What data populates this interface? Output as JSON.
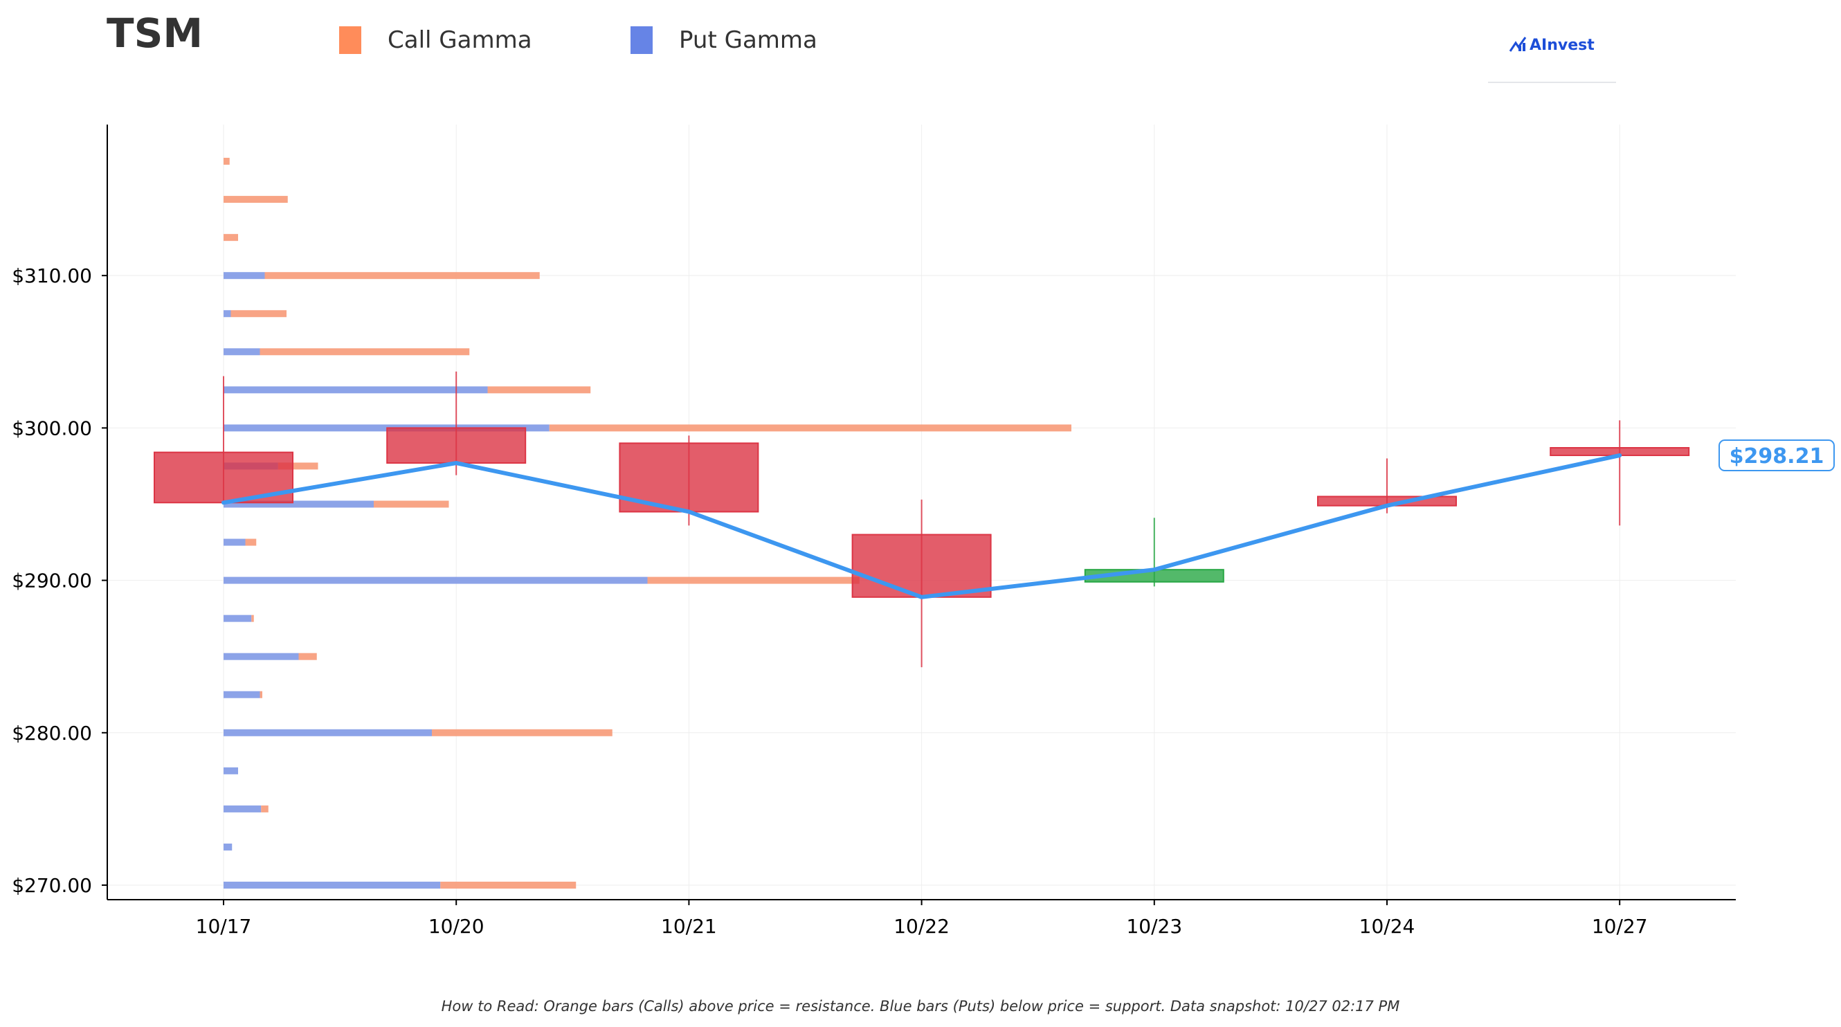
{
  "header": {
    "ticker": "TSM",
    "logo_text": "AInvest"
  },
  "legend": [
    {
      "label": "Call Gamma",
      "color": "#ff8c5a"
    },
    {
      "label": "Put Gamma",
      "color": "#6684e6"
    }
  ],
  "footnote": "How to Read: Orange bars (Calls) above price = resistance. Blue bars (Puts) below price = support. Data snapshot: 10/27 02:17 PM",
  "colors": {
    "call": "#f79a78",
    "put": "#8099e6",
    "bearish": "#dc3545",
    "bullish": "#28a745",
    "price_line": "#3d97f0"
  },
  "chart_data": {
    "type": "bar",
    "categories": [
      "10/17",
      "10/20",
      "10/21",
      "10/22",
      "10/23",
      "10/24",
      "10/27"
    ],
    "ylim": [
      269.5,
      319
    ],
    "yticks": [
      270,
      280,
      290,
      300,
      310
    ],
    "ytick_labels": [
      "$270.00",
      "$280.00",
      "$290.00",
      "$300.00",
      "$310.00"
    ],
    "xlabel": "",
    "ylabel": "",
    "grid": true,
    "candles": [
      {
        "date": "10/17",
        "open": 298.4,
        "close": 295.1,
        "high": 303.4,
        "low": 295.1
      },
      {
        "date": "10/20",
        "open": 300.0,
        "close": 297.7,
        "high": 303.7,
        "low": 296.9
      },
      {
        "date": "10/21",
        "open": 299.0,
        "close": 294.5,
        "high": 299.5,
        "low": 293.6
      },
      {
        "date": "10/22",
        "open": 293.0,
        "close": 288.9,
        "high": 295.3,
        "low": 284.3
      },
      {
        "date": "10/23",
        "open": 289.9,
        "close": 290.7,
        "high": 294.1,
        "low": 289.6
      },
      {
        "date": "10/24",
        "open": 295.5,
        "close": 294.9,
        "high": 298.0,
        "low": 294.4
      },
      {
        "date": "10/27",
        "open": 298.7,
        "close": 298.2,
        "high": 300.5,
        "low": 293.6
      }
    ],
    "price_line": [
      295.1,
      297.7,
      294.5,
      288.9,
      290.7,
      294.9,
      298.2
    ],
    "last_price_label": "$298.21",
    "gamma_strikes": [
      {
        "strike": 317.5,
        "put": 0.0,
        "call": 0.05
      },
      {
        "strike": 315.0,
        "put": 0.0,
        "call": 0.53
      },
      {
        "strike": 312.5,
        "put": 0.0,
        "call": 0.12
      },
      {
        "strike": 310.0,
        "put": 0.34,
        "call": 2.27
      },
      {
        "strike": 307.5,
        "put": 0.06,
        "call": 0.46
      },
      {
        "strike": 305.0,
        "put": 0.3,
        "call": 1.73
      },
      {
        "strike": 302.5,
        "put": 2.18,
        "call": 0.85
      },
      {
        "strike": 300.0,
        "put": 2.69,
        "call": 4.31
      },
      {
        "strike": 297.5,
        "put": 0.45,
        "call": 0.33
      },
      {
        "strike": 295.0,
        "put": 1.24,
        "call": 0.62
      },
      {
        "strike": 292.5,
        "put": 0.18,
        "call": 0.09
      },
      {
        "strike": 290.0,
        "put": 3.5,
        "call": 1.75
      },
      {
        "strike": 287.5,
        "put": 0.23,
        "call": 0.02
      },
      {
        "strike": 285.0,
        "put": 0.62,
        "call": 0.15
      },
      {
        "strike": 282.5,
        "put": 0.3,
        "call": 0.02
      },
      {
        "strike": 280.0,
        "put": 1.72,
        "call": 1.49
      },
      {
        "strike": 277.5,
        "put": 0.12,
        "call": 0.0
      },
      {
        "strike": 275.0,
        "put": 0.31,
        "call": 0.06
      },
      {
        "strike": 272.5,
        "put": 0.07,
        "call": 0.0
      },
      {
        "strike": 270.0,
        "put": 1.79,
        "call": 1.12
      }
    ]
  }
}
